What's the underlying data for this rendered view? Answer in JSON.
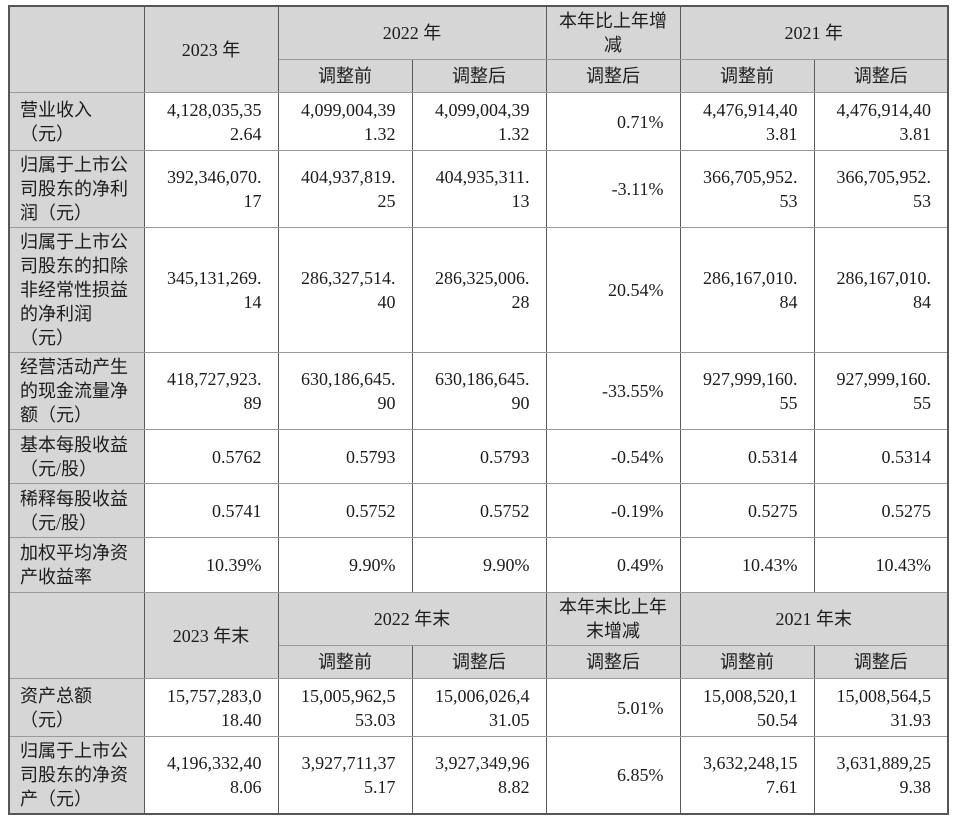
{
  "colors": {
    "header_bg": "#d6d6d6",
    "border_dark": "#5a5a5a",
    "border_light": "#9a9a9a",
    "text": "#1c1c1c"
  },
  "table": {
    "adjust_before": "调整前",
    "adjust_after": "调整后",
    "sections": [
      {
        "period_current": "2023 年",
        "period_prev_group": "2022 年",
        "change_label": "本年比上年增减",
        "period_prev2_group": "2021 年",
        "rows": [
          {
            "label": "营业收入（元）",
            "values": [
              "4,128,035,352.64",
              "4,099,004,391.32",
              "4,099,004,391.32",
              "0.71%",
              "4,476,914,403.81",
              "4,476,914,403.81"
            ]
          },
          {
            "label": "归属于上市公司股东的净利润（元）",
            "values": [
              "392,346,070.17",
              "404,937,819.25",
              "404,935,311.13",
              "-3.11%",
              "366,705,952.53",
              "366,705,952.53"
            ]
          },
          {
            "label": "归属于上市公司股东的扣除非经常性损益的净利润（元）",
            "values": [
              "345,131,269.14",
              "286,327,514.40",
              "286,325,006.28",
              "20.54%",
              "286,167,010.84",
              "286,167,010.84"
            ]
          },
          {
            "label": "经营活动产生的现金流量净额（元）",
            "values": [
              "418,727,923.89",
              "630,186,645.90",
              "630,186,645.90",
              "-33.55%",
              "927,999,160.55",
              "927,999,160.55"
            ]
          },
          {
            "label": "基本每股收益（元/股）",
            "values": [
              "0.5762",
              "0.5793",
              "0.5793",
              "-0.54%",
              "0.5314",
              "0.5314"
            ]
          },
          {
            "label": "稀释每股收益（元/股）",
            "values": [
              "0.5741",
              "0.5752",
              "0.5752",
              "-0.19%",
              "0.5275",
              "0.5275"
            ]
          },
          {
            "label": "加权平均净资产收益率",
            "values": [
              "10.39%",
              "9.90%",
              "9.90%",
              "0.49%",
              "10.43%",
              "10.43%"
            ]
          }
        ]
      },
      {
        "period_current": "2023 年末",
        "period_prev_group": "2022 年末",
        "change_label": "本年末比上年末增减",
        "period_prev2_group": "2021 年末",
        "rows": [
          {
            "label": "资产总额（元）",
            "values": [
              "15,757,283,018.40",
              "15,005,962,553.03",
              "15,006,026,431.05",
              "5.01%",
              "15,008,520,150.54",
              "15,008,564,531.93"
            ]
          },
          {
            "label": "归属于上市公司股东的净资产（元）",
            "values": [
              "4,196,332,408.06",
              "3,927,711,375.17",
              "3,927,349,968.82",
              "6.85%",
              "3,632,248,157.61",
              "3,631,889,259.38"
            ]
          }
        ]
      }
    ]
  }
}
